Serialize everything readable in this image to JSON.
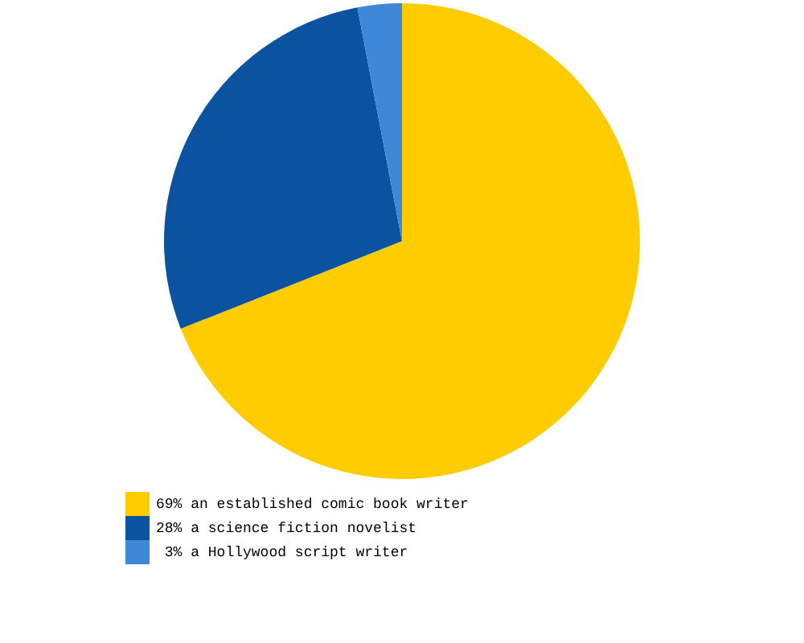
{
  "chart_data": {
    "type": "pie",
    "categories": [
      "69% an established comic book writer",
      "28% a science fiction novelist",
      " 3% a Hollywood script writer"
    ],
    "values": [
      69,
      28,
      3
    ],
    "colors": [
      "#ffcc00",
      "#0b52a0",
      "#3f88d8"
    ],
    "legend": "bottom left"
  }
}
